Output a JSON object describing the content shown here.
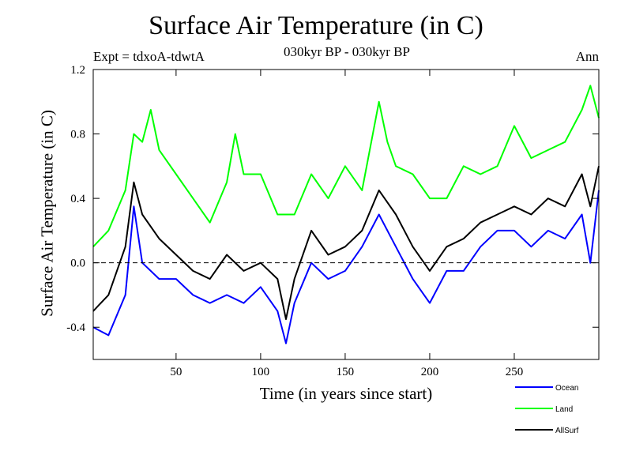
{
  "chart_data": {
    "type": "line",
    "title": "Surface Air Temperature (in C)",
    "subtitle": "030kyr BP - 030kyr BP",
    "expt_label": "Expt = tdxoA-tdwtA",
    "season": "Ann",
    "xlabel": "Time (in years since start)",
    "ylabel": "Surface Air Temperature (in C)",
    "xlim": [
      1,
      300
    ],
    "ylim": [
      -0.6,
      1.2
    ],
    "xticks": [
      50,
      100,
      150,
      200,
      250
    ],
    "yticks": [
      -0.4,
      0.0,
      0.4,
      0.8,
      1.2
    ],
    "ytick_labels": [
      "-0.4",
      "0.0",
      "0.4",
      "0.8",
      "1.2"
    ],
    "reference_line": 0.0,
    "legend_position": "bottom-right, below plot",
    "series": [
      {
        "name": "Ocean",
        "color": "#0000ff",
        "x": [
          1,
          10,
          20,
          25,
          30,
          40,
          50,
          60,
          70,
          80,
          90,
          100,
          110,
          115,
          120,
          130,
          140,
          150,
          160,
          170,
          180,
          190,
          200,
          210,
          220,
          230,
          240,
          250,
          260,
          270,
          280,
          290,
          295,
          300
        ],
        "values": [
          -0.4,
          -0.45,
          -0.2,
          0.35,
          0.0,
          -0.1,
          -0.1,
          -0.2,
          -0.25,
          -0.2,
          -0.25,
          -0.15,
          -0.3,
          -0.5,
          -0.25,
          0.0,
          -0.1,
          -0.05,
          0.1,
          0.3,
          0.1,
          -0.1,
          -0.25,
          -0.05,
          -0.05,
          0.1,
          0.2,
          0.2,
          0.1,
          0.2,
          0.15,
          0.3,
          0.0,
          0.45
        ]
      },
      {
        "name": "Land",
        "color": "#00ff00",
        "x": [
          1,
          10,
          20,
          25,
          30,
          35,
          40,
          50,
          60,
          70,
          80,
          85,
          90,
          100,
          110,
          120,
          130,
          140,
          150,
          160,
          170,
          175,
          180,
          190,
          200,
          210,
          220,
          230,
          240,
          250,
          260,
          270,
          280,
          290,
          295,
          300
        ],
        "values": [
          0.1,
          0.2,
          0.45,
          0.8,
          0.75,
          0.95,
          0.7,
          0.55,
          0.4,
          0.25,
          0.5,
          0.8,
          0.55,
          0.55,
          0.3,
          0.3,
          0.55,
          0.4,
          0.6,
          0.45,
          1.0,
          0.75,
          0.6,
          0.55,
          0.4,
          0.4,
          0.6,
          0.55,
          0.6,
          0.85,
          0.65,
          0.7,
          0.75,
          0.95,
          1.1,
          0.9
        ]
      },
      {
        "name": "AllSurf",
        "color": "#000000",
        "x": [
          1,
          10,
          20,
          25,
          30,
          40,
          50,
          60,
          70,
          80,
          90,
          100,
          110,
          115,
          120,
          130,
          140,
          150,
          160,
          170,
          180,
          190,
          200,
          210,
          220,
          230,
          240,
          250,
          260,
          270,
          280,
          290,
          295,
          300
        ],
        "values": [
          -0.3,
          -0.2,
          0.1,
          0.5,
          0.3,
          0.15,
          0.05,
          -0.05,
          -0.1,
          0.05,
          -0.05,
          0.0,
          -0.1,
          -0.35,
          -0.1,
          0.2,
          0.05,
          0.1,
          0.2,
          0.45,
          0.3,
          0.1,
          -0.05,
          0.1,
          0.15,
          0.25,
          0.3,
          0.35,
          0.3,
          0.4,
          0.35,
          0.55,
          0.35,
          0.6
        ]
      }
    ]
  }
}
